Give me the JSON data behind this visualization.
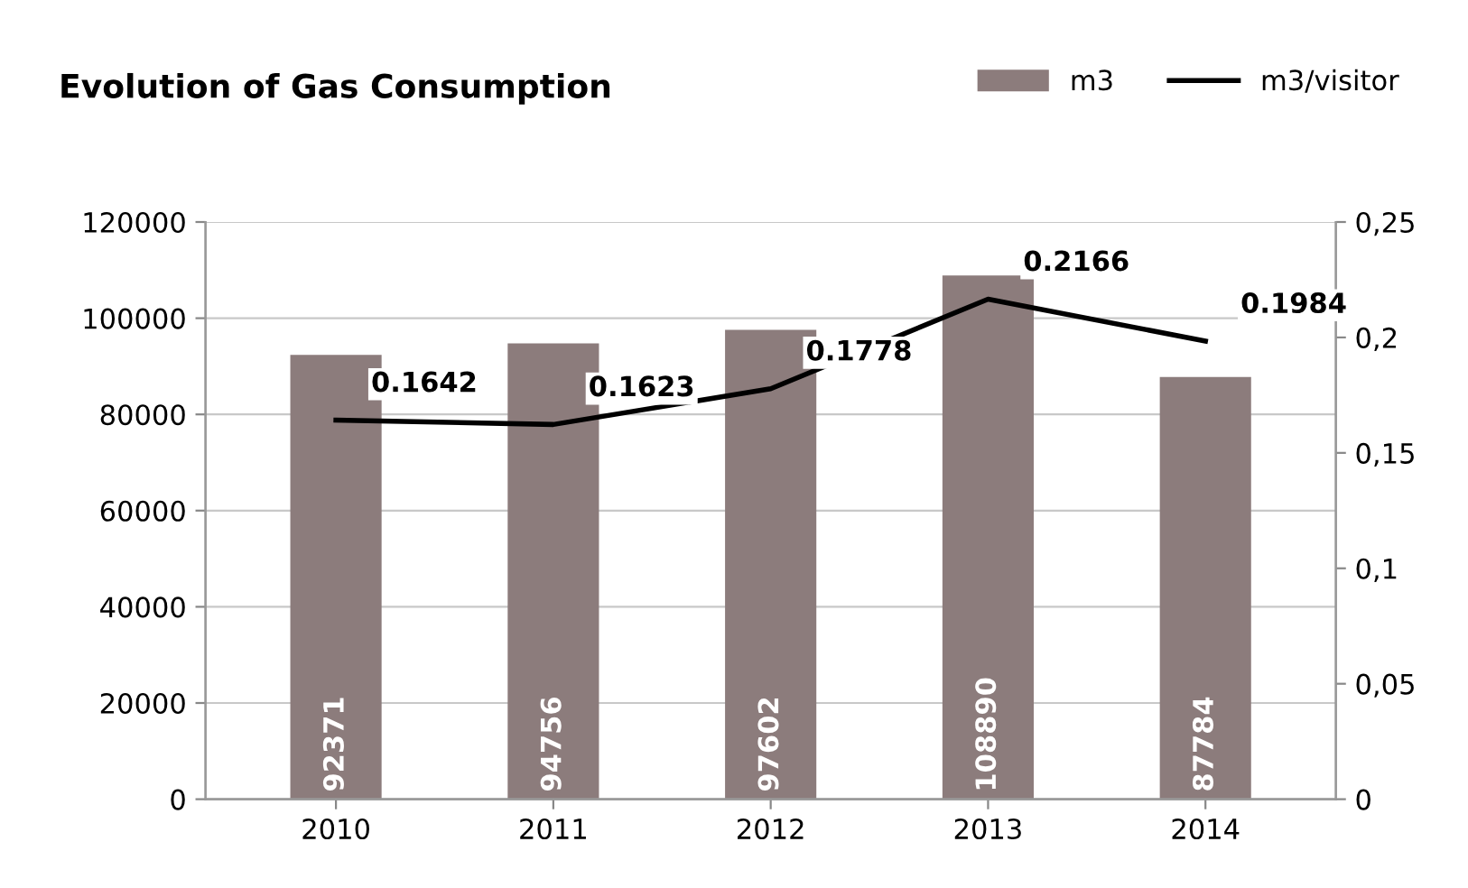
{
  "chart_data": {
    "type": "bar",
    "title": "Evolution of Gas Consumption",
    "categories": [
      "2010",
      "2011",
      "2012",
      "2013",
      "2014"
    ],
    "series": [
      {
        "name": "m3",
        "color": "#8c7c7c",
        "values": [
          92371,
          94756,
          97602,
          108890,
          87784
        ]
      },
      {
        "name": "m3/visitor",
        "type": "line",
        "axis": "y2",
        "color": "#000000",
        "values": [
          0.1642,
          0.1623,
          0.1778,
          0.2166,
          0.1984
        ]
      }
    ],
    "ylim": [
      0,
      120000
    ],
    "yticks": [
      0,
      20000,
      40000,
      60000,
      80000,
      100000,
      120000
    ],
    "y2lim": [
      0,
      0.25
    ],
    "y2ticks": [
      0,
      {
        "value": 0.05,
        "label": "0,05"
      },
      {
        "value": 0.1,
        "label": "0,1"
      },
      {
        "value": 0.15,
        "label": "0,15"
      },
      {
        "value": 0.2,
        "label": "0,2"
      },
      {
        "value": 0.25,
        "label": "0,25"
      }
    ],
    "grid": "y",
    "legend": "top right",
    "data_labels": true,
    "marker": "none",
    "line_style": "solid"
  }
}
